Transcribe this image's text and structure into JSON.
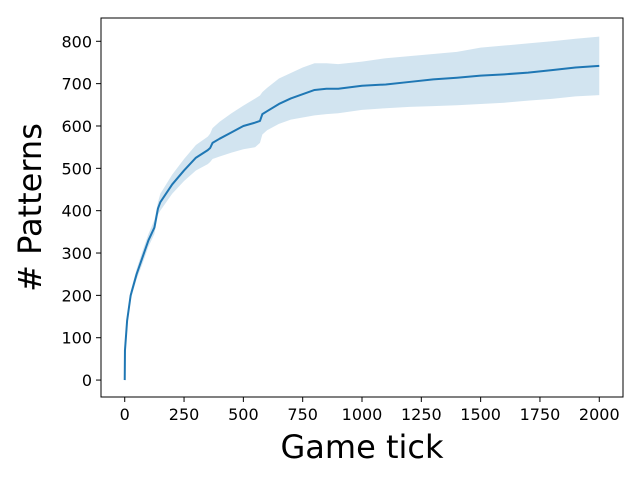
{
  "chart_data": {
    "type": "line",
    "title": "",
    "xlabel": "Game tick",
    "ylabel": "# Patterns",
    "xlim": [
      -100,
      2100
    ],
    "ylim": [
      -40,
      855
    ],
    "x_ticks": [
      0,
      250,
      500,
      750,
      1000,
      1250,
      1500,
      1750,
      2000
    ],
    "x_tick_labels": [
      "0",
      "250",
      "500",
      "750",
      "1000",
      "1250",
      "1500",
      "1750",
      "2000"
    ],
    "y_ticks": [
      0,
      100,
      200,
      300,
      400,
      500,
      600,
      700,
      800
    ],
    "y_tick_labels": [
      "0",
      "100",
      "200",
      "300",
      "400",
      "500",
      "600",
      "700",
      "800"
    ],
    "grid": false,
    "legend": "none",
    "colors": {
      "line": "#1f77b4",
      "band": "#1f77b4",
      "band_opacity": 0.2
    },
    "series": [
      {
        "x": [
          0,
          1,
          10,
          25,
          50,
          75,
          100,
          125,
          140,
          150,
          200,
          250,
          300,
          350,
          360,
          370,
          400,
          450,
          500,
          550,
          570,
          580,
          600,
          650,
          700,
          750,
          800,
          850,
          900,
          1000,
          1100,
          1200,
          1300,
          1400,
          1500,
          1600,
          1700,
          1800,
          1900,
          2000
        ],
        "y": [
          0,
          70,
          140,
          200,
          250,
          290,
          330,
          360,
          405,
          420,
          462,
          495,
          525,
          543,
          548,
          560,
          570,
          585,
          600,
          608,
          612,
          628,
          635,
          652,
          665,
          675,
          685,
          688,
          688,
          695,
          698,
          704,
          710,
          714,
          719,
          722,
          726,
          732,
          738,
          742
        ],
        "lower": [
          0,
          65,
          130,
          190,
          238,
          275,
          315,
          345,
          390,
          400,
          440,
          470,
          495,
          510,
          515,
          522,
          528,
          537,
          545,
          550,
          560,
          580,
          590,
          605,
          615,
          620,
          625,
          628,
          630,
          638,
          642,
          645,
          647,
          649,
          652,
          655,
          660,
          664,
          670,
          673
        ],
        "upper": [
          0,
          75,
          150,
          210,
          262,
          305,
          345,
          378,
          420,
          440,
          485,
          522,
          555,
          575,
          582,
          595,
          610,
          630,
          648,
          665,
          672,
          680,
          690,
          712,
          725,
          738,
          748,
          748,
          746,
          752,
          760,
          765,
          770,
          775,
          785,
          790,
          795,
          800,
          806,
          811
        ]
      }
    ]
  }
}
